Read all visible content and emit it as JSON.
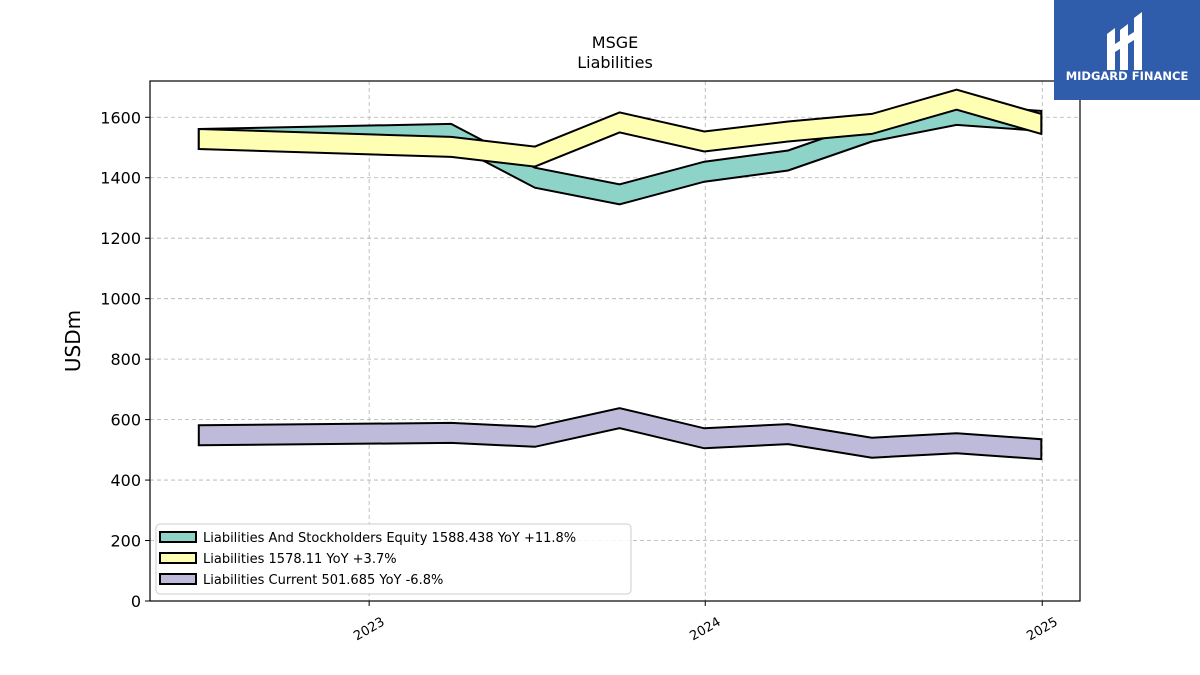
{
  "title": "MSGE",
  "subtitle": "Liabilities",
  "logo": {
    "text": "MIDGARD FINANCE",
    "background": "#2f5dab",
    "icon": "midgard-logo-icon"
  },
  "chart_data": {
    "type": "area",
    "title": "MSGE",
    "subtitle": "Liabilities",
    "ylabel": "USDm",
    "xlabel": "",
    "ylim": [
      0,
      1720
    ],
    "xlim": [
      "2022-05-08",
      "2025-02-11"
    ],
    "yticks": [
      0,
      200,
      400,
      600,
      800,
      1000,
      1200,
      1400,
      1600
    ],
    "xticks": [
      {
        "label": "2023",
        "date": "2023-01-01"
      },
      {
        "label": "2024",
        "date": "2024-01-01"
      },
      {
        "label": "2025",
        "date": "2025-01-01"
      }
    ],
    "grid": true,
    "legend_position": "lower-left",
    "band_width": 20,
    "x": [
      "2022-06-30",
      "2023-03-31",
      "2023-06-30",
      "2023-09-30",
      "2023-12-31",
      "2024-03-31",
      "2024-06-30",
      "2024-09-30",
      "2024-12-31"
    ],
    "series": [
      {
        "name": "Liabilities And Stockholders Equity",
        "legend": "Liabilities And Stockholders Equity  1588.438 YoY +11.8%",
        "color": "#8dd3c7",
        "values": [
          1528,
          1545,
          1400,
          1345,
          1420,
          1457,
          1553,
          1608,
          1588
        ]
      },
      {
        "name": "Liabilities",
        "legend": "Liabilities  1578.11 YoY +3.7%",
        "color": "#ffffb3",
        "values": [
          1528,
          1502,
          1470,
          1583,
          1520,
          1553,
          1578,
          1658,
          1578
        ]
      },
      {
        "name": "Liabilities Current",
        "legend": "Liabilities Current  501.685 YoY -6.8%",
        "color": "#bebada",
        "values": [
          548,
          556,
          543,
          605,
          538,
          552,
          507,
          522,
          502
        ]
      }
    ]
  }
}
